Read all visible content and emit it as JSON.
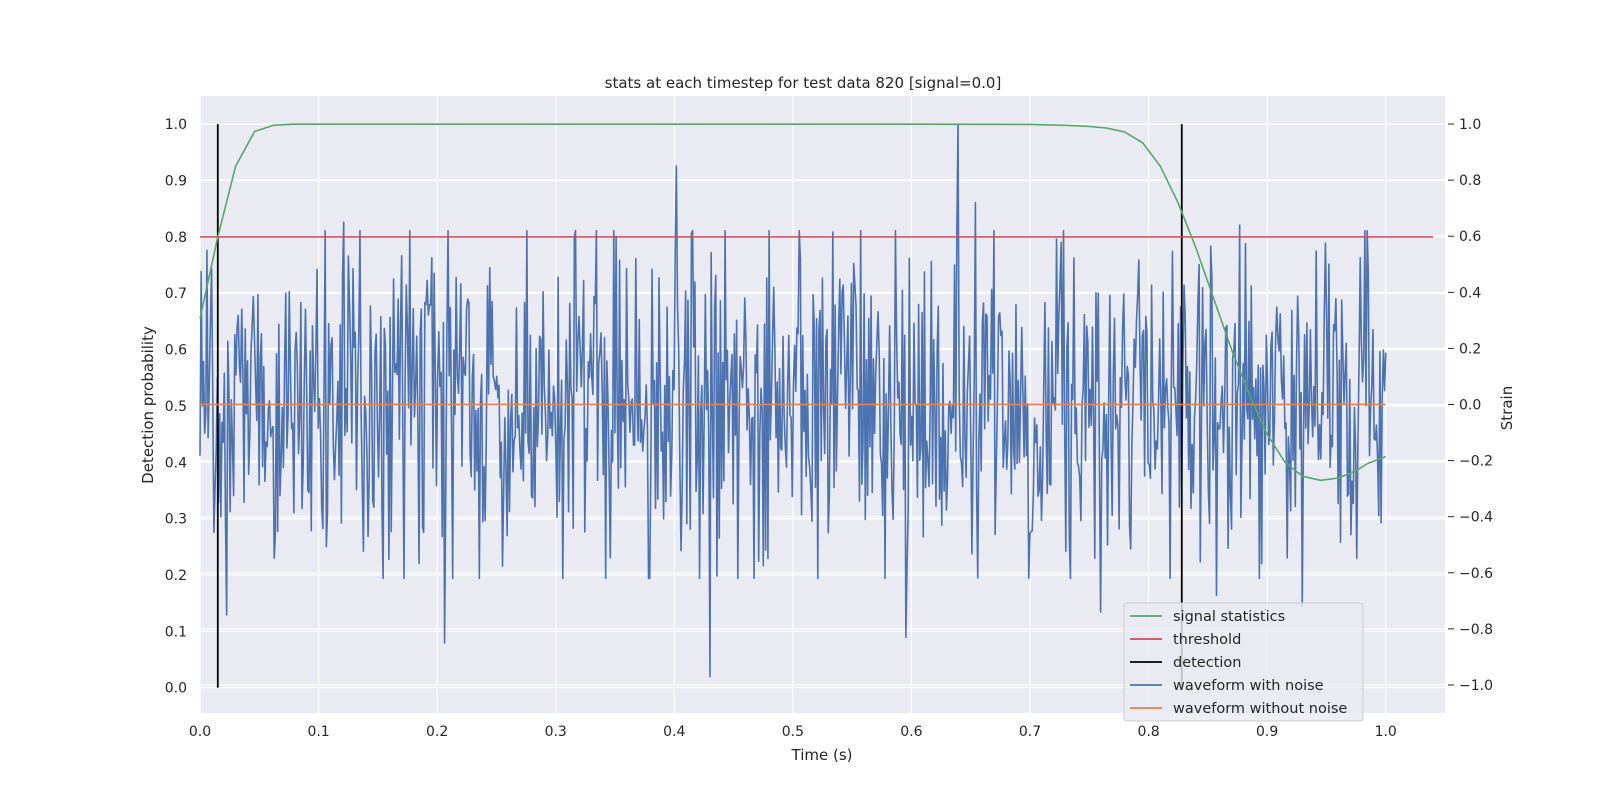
{
  "chart_data": {
    "type": "line",
    "title": "stats at each timestep for test data 820 [signal=0.0]",
    "xlabel": "Time (s)",
    "ylabel": "Detection probability",
    "y2label": "Strain",
    "xlim": [
      0.0,
      1.05
    ],
    "ylim": [
      -0.045,
      1.05
    ],
    "y2lim": [
      -1.1,
      1.1
    ],
    "x_ticks": [
      "0.0",
      "0.1",
      "0.2",
      "0.3",
      "0.4",
      "0.5",
      "0.6",
      "0.7",
      "0.8",
      "0.9",
      "1.0"
    ],
    "y_ticks": [
      "0.0",
      "0.1",
      "0.2",
      "0.3",
      "0.4",
      "0.5",
      "0.6",
      "0.7",
      "0.8",
      "0.9",
      "1.0"
    ],
    "y2_ticks": [
      "−1.0",
      "−0.8",
      "−0.6",
      "−0.4",
      "−0.2",
      "0.0",
      "0.2",
      "0.4",
      "0.6",
      "0.8",
      "1.0"
    ],
    "grid": true,
    "legend_position": "lower-right",
    "signal_statistics": {
      "name": "signal statistics",
      "color": "#55a868",
      "axis": "left",
      "x": [
        0.0,
        0.015,
        0.03,
        0.046,
        0.062,
        0.078,
        0.1,
        0.2,
        0.3,
        0.4,
        0.5,
        0.6,
        0.7,
        0.73,
        0.75,
        0.765,
        0.78,
        0.795,
        0.81,
        0.825,
        0.84,
        0.855,
        0.87,
        0.885,
        0.9,
        0.915,
        0.93,
        0.945,
        0.96,
        0.975,
        0.985,
        1.0
      ],
      "y": [
        0.655,
        0.8,
        0.925,
        0.987,
        0.998,
        1.0,
        1.0,
        1.0,
        1.0,
        1.0,
        1.0,
        1.0,
        0.9995,
        0.998,
        0.996,
        0.993,
        0.986,
        0.967,
        0.925,
        0.86,
        0.78,
        0.69,
        0.6,
        0.52,
        0.45,
        0.4,
        0.375,
        0.368,
        0.372,
        0.385,
        0.398,
        0.41
      ]
    },
    "threshold": {
      "name": "threshold",
      "color": "#c44e52",
      "axis": "left",
      "value": 0.8,
      "x_range": [
        0.0,
        1.04
      ]
    },
    "detection": {
      "name": "detection",
      "color": "#000000",
      "axis": "left",
      "x": [
        0.015,
        0.828
      ],
      "y_range": [
        0.0,
        1.0
      ]
    },
    "waveform_with_noise": {
      "name": "waveform with noise",
      "color": "#4c72b0",
      "axis": "right",
      "x_range": [
        0.0,
        1.0
      ],
      "n_points": 1024,
      "seed": 820,
      "std": 0.3,
      "anchors": [
        {
          "x": 0.006,
          "y": 0.55
        },
        {
          "x": 0.009,
          "y": 0.3
        },
        {
          "x": 0.018,
          "y": -0.4
        },
        {
          "x": 0.022,
          "y": -0.75
        },
        {
          "x": 0.121,
          "y": 0.65
        },
        {
          "x": 0.206,
          "y": -0.85
        },
        {
          "x": 0.402,
          "y": 0.85
        },
        {
          "x": 0.43,
          "y": -0.97
        },
        {
          "x": 0.595,
          "y": -0.83
        },
        {
          "x": 0.639,
          "y": 1.0
        },
        {
          "x": 0.654,
          "y": 0.72
        },
        {
          "x": 0.76,
          "y": -0.74
        },
        {
          "x": 0.857,
          "y": -0.68
        },
        {
          "x": 0.877,
          "y": 0.64
        },
        {
          "x": 0.93,
          "y": -0.72
        }
      ]
    },
    "waveform_without_noise": {
      "name": "waveform without noise",
      "color": "#dd8452",
      "axis": "right",
      "value": 0.0,
      "x_range": [
        0.0,
        1.0
      ]
    },
    "legend": [
      "signal statistics",
      "threshold",
      "detection",
      "waveform with noise",
      "waveform without noise"
    ]
  }
}
